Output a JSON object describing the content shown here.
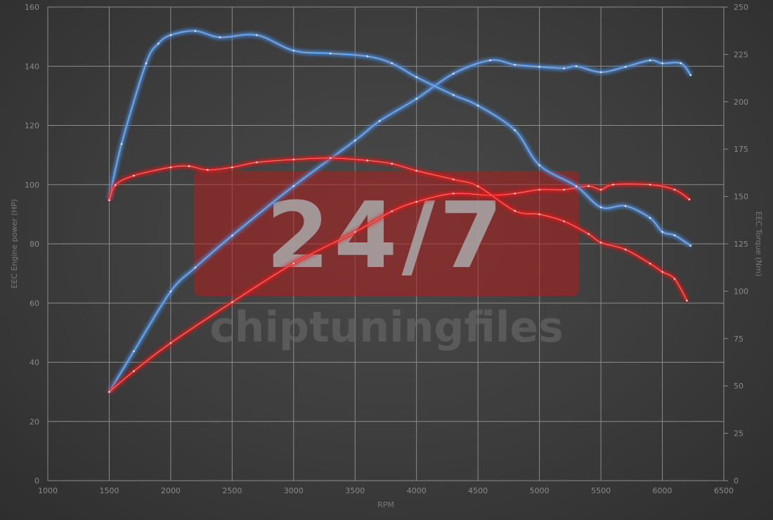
{
  "chart_data": {
    "type": "line",
    "xlabel": "RPM",
    "ylabel_left": "EEC Engine power (HP)",
    "ylabel_right": "EEC Torque (Nm)",
    "xlim": [
      1000,
      6500
    ],
    "ylim_left": [
      0,
      160
    ],
    "ylim_right": [
      0,
      250
    ],
    "x_ticks": [
      1000,
      1500,
      2000,
      2500,
      3000,
      3500,
      4000,
      4500,
      5000,
      5500,
      6000,
      6500
    ],
    "y_ticks_left": [
      0,
      20,
      40,
      60,
      80,
      100,
      120,
      140,
      160
    ],
    "y_ticks_right": [
      0,
      25,
      50,
      75,
      100,
      125,
      150,
      175,
      200,
      225,
      250
    ],
    "grid": true,
    "watermark": {
      "badge": "24/7",
      "text": "chiptuningfiles"
    },
    "series": [
      {
        "axis": "left",
        "color": "#4a90e2",
        "points": [
          [
            1500,
            30
          ],
          [
            1700,
            43.7
          ],
          [
            2000,
            63.9
          ],
          [
            2200,
            72
          ],
          [
            2500,
            82.8
          ],
          [
            3000,
            99.5
          ],
          [
            3500,
            114.9
          ],
          [
            3700,
            121.5
          ],
          [
            4000,
            129
          ],
          [
            4300,
            137.5
          ],
          [
            4600,
            142
          ],
          [
            4800,
            140.5
          ],
          [
            5000,
            139.8
          ],
          [
            5200,
            139.3
          ],
          [
            5300,
            140
          ],
          [
            5500,
            138
          ],
          [
            5700,
            139.8
          ],
          [
            5900,
            142
          ],
          [
            6000,
            141
          ],
          [
            6150,
            141
          ],
          [
            6230,
            137
          ]
        ]
      },
      {
        "axis": "left",
        "color": "#e82020",
        "points": [
          [
            1500,
            30
          ],
          [
            1700,
            37
          ],
          [
            2000,
            46.5
          ],
          [
            2500,
            60.3
          ],
          [
            3000,
            73.4
          ],
          [
            3500,
            84
          ],
          [
            3800,
            91
          ],
          [
            4000,
            94.2
          ],
          [
            4300,
            97
          ],
          [
            4600,
            96.4
          ],
          [
            4800,
            97
          ],
          [
            5000,
            98.3
          ],
          [
            5200,
            98.3
          ],
          [
            5400,
            99.5
          ],
          [
            5500,
            98.3
          ],
          [
            5600,
            100
          ],
          [
            5900,
            100
          ],
          [
            6100,
            98.3
          ],
          [
            6220,
            95
          ]
        ]
      },
      {
        "axis": "right",
        "color": "#4a90e2",
        "points": [
          [
            1500,
            148.7
          ],
          [
            1600,
            177.7
          ],
          [
            1800,
            220.3
          ],
          [
            1900,
            230.7
          ],
          [
            2000,
            235.2
          ],
          [
            2200,
            237.4
          ],
          [
            2400,
            234
          ],
          [
            2700,
            235.2
          ],
          [
            3000,
            227
          ],
          [
            3300,
            225.5
          ],
          [
            3600,
            224
          ],
          [
            3800,
            220.3
          ],
          [
            4000,
            213
          ],
          [
            4300,
            203.6
          ],
          [
            4500,
            198
          ],
          [
            4800,
            185
          ],
          [
            5000,
            166.5
          ],
          [
            5300,
            155.4
          ],
          [
            5500,
            144.3
          ],
          [
            5700,
            145
          ],
          [
            5900,
            138.7
          ],
          [
            6000,
            131.3
          ],
          [
            6100,
            129.5
          ],
          [
            6230,
            124
          ]
        ]
      },
      {
        "axis": "right",
        "color": "#e82020",
        "points": [
          [
            1500,
            148
          ],
          [
            1550,
            156
          ],
          [
            1700,
            161
          ],
          [
            2000,
            165.4
          ],
          [
            2150,
            166
          ],
          [
            2300,
            164
          ],
          [
            2500,
            165.4
          ],
          [
            2700,
            168
          ],
          [
            3000,
            169.5
          ],
          [
            3300,
            170.3
          ],
          [
            3600,
            169
          ],
          [
            3800,
            167.3
          ],
          [
            4000,
            163.6
          ],
          [
            4300,
            159
          ],
          [
            4500,
            155.4
          ],
          [
            4800,
            142.4
          ],
          [
            5000,
            140.6
          ],
          [
            5200,
            136.9
          ],
          [
            5400,
            130.2
          ],
          [
            5500,
            125.7
          ],
          [
            5700,
            122
          ],
          [
            5900,
            114.6
          ],
          [
            6000,
            110.2
          ],
          [
            6100,
            106.5
          ],
          [
            6200,
            95
          ]
        ]
      }
    ]
  }
}
